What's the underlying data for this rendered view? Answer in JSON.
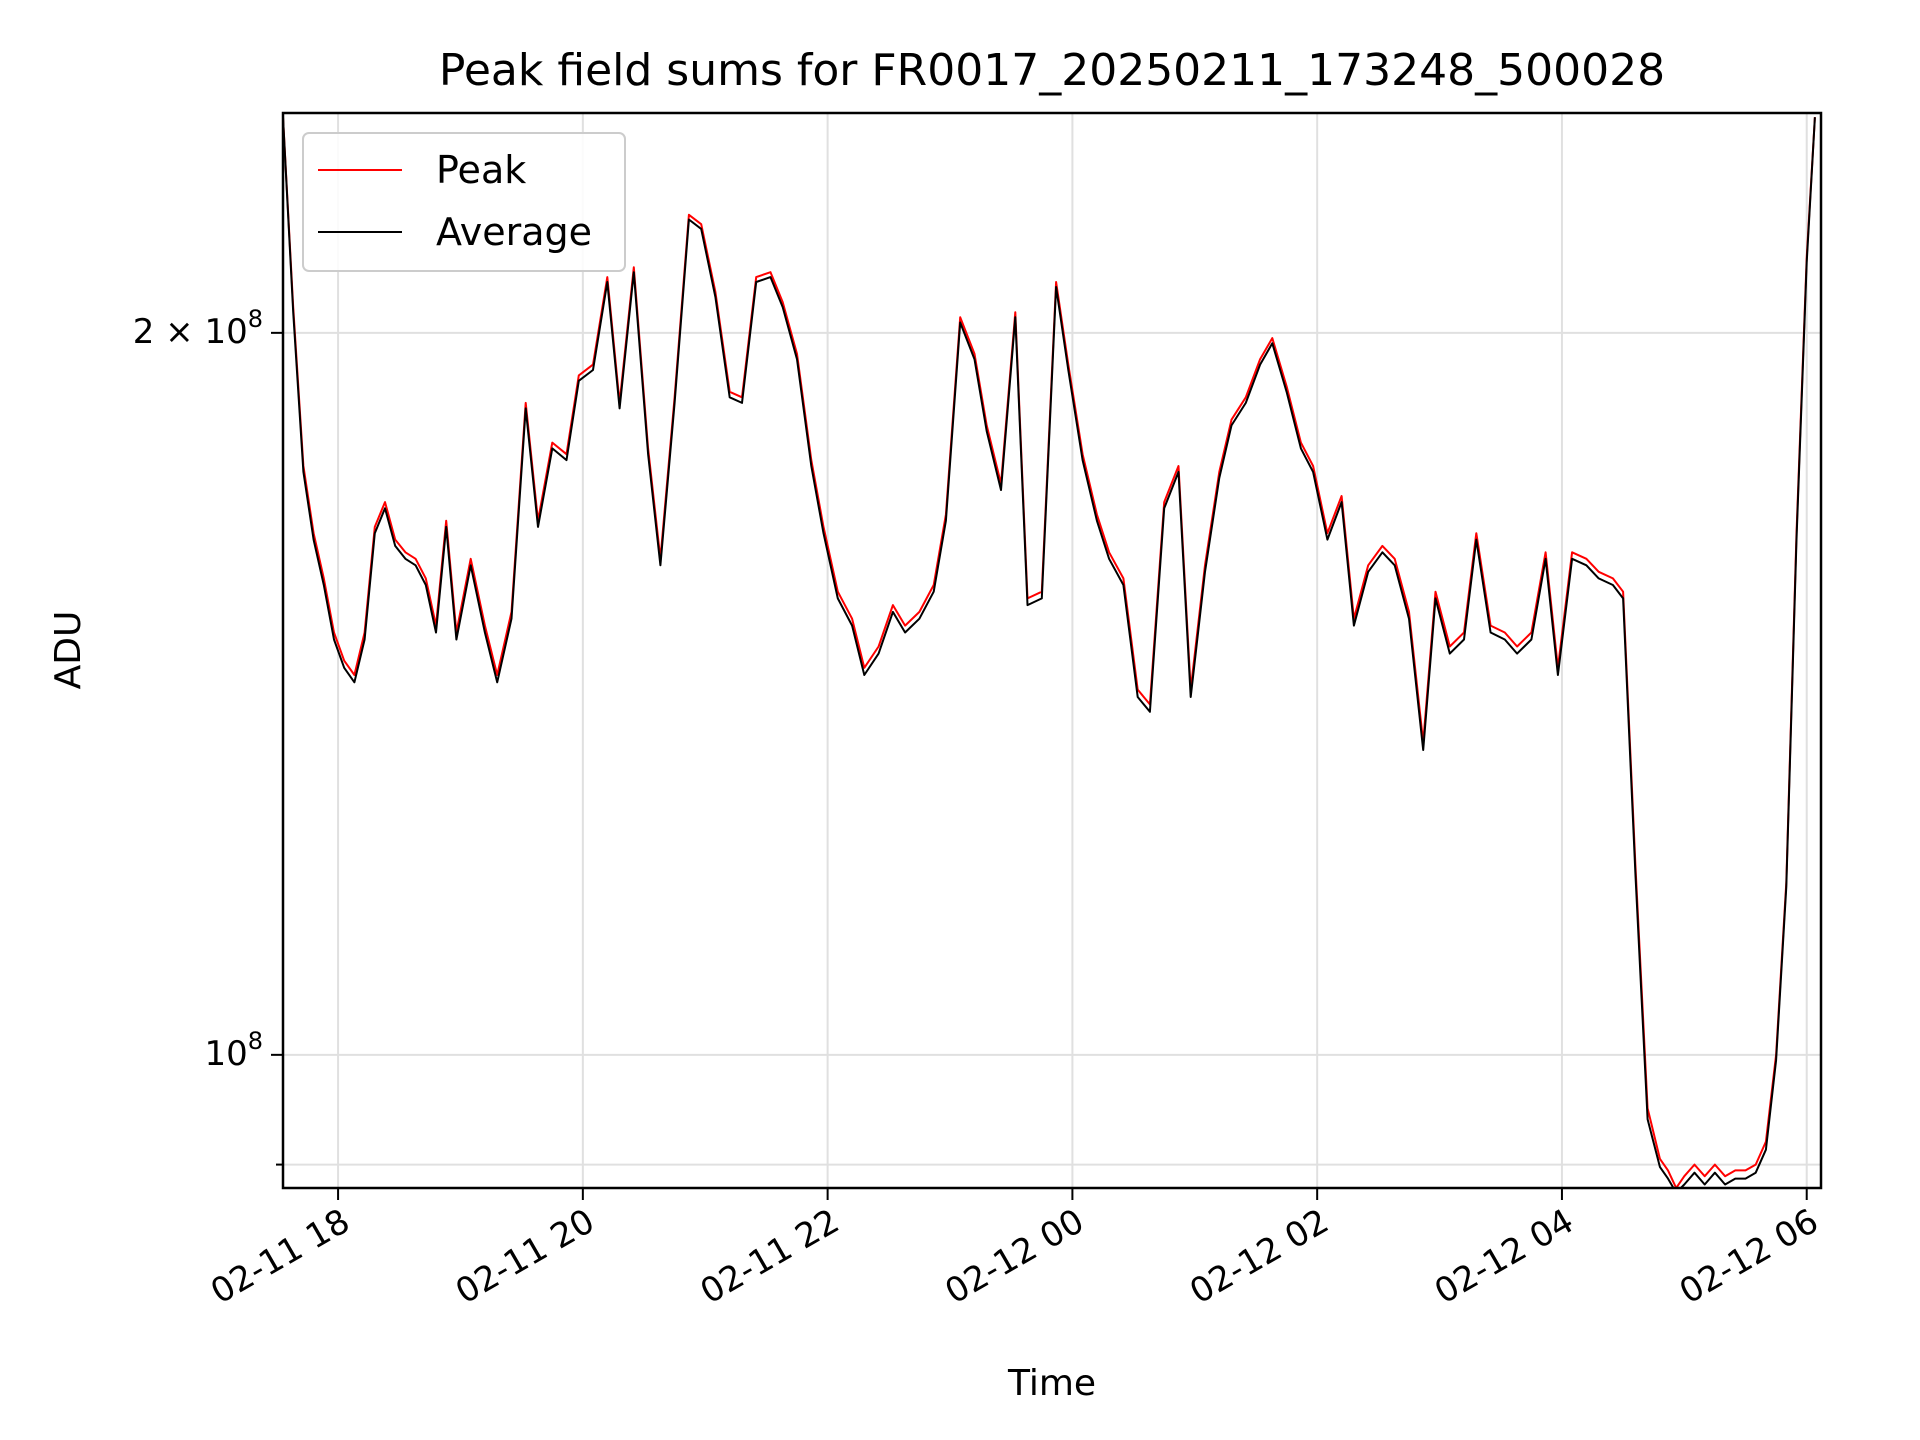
{
  "chart_data": {
    "type": "line",
    "title": "Peak field sums for FR0017_20250211_173248_500028",
    "xlabel": "Time",
    "ylabel": "ADU",
    "yscale": "log",
    "grid": true,
    "legend_position": "top-left",
    "xlim": [
      "2025-02-11 17:33",
      "2025-02-12 06:07"
    ],
    "ylim": [
      88000000,
      247000000
    ],
    "x_ticks": [
      "02-11 18",
      "02-11 20",
      "02-11 22",
      "02-12 00",
      "02-12 02",
      "02-12 04",
      "02-12 06"
    ],
    "x_tick_values": [
      "2025-02-11 18:00",
      "2025-02-11 20:00",
      "2025-02-11 22:00",
      "2025-02-12 00:00",
      "2025-02-12 02:00",
      "2025-02-12 04:00",
      "2025-02-12 06:00"
    ],
    "y_major_ticks": [
      {
        "value": 100000000,
        "base": "10",
        "exp": "8",
        "mult": ""
      },
      {
        "value": 200000000,
        "base": "10",
        "exp": "8",
        "mult": "2 × "
      }
    ],
    "y_minor_ticks": [
      90000000
    ],
    "series": [
      {
        "name": "Peak",
        "color": "#ff0000",
        "x": [
          "2025-02-11 17:33",
          "2025-02-11 17:38",
          "2025-02-11 17:43",
          "2025-02-11 17:48",
          "2025-02-11 17:53",
          "2025-02-11 17:58",
          "2025-02-11 18:03",
          "2025-02-11 18:08",
          "2025-02-11 18:13",
          "2025-02-11 18:18",
          "2025-02-11 18:23",
          "2025-02-11 18:28",
          "2025-02-11 18:33",
          "2025-02-11 18:38",
          "2025-02-11 18:43",
          "2025-02-11 18:48",
          "2025-02-11 18:53",
          "2025-02-11 18:58",
          "2025-02-11 19:05",
          "2025-02-11 19:12",
          "2025-02-11 19:18",
          "2025-02-11 19:25",
          "2025-02-11 19:32",
          "2025-02-11 19:38",
          "2025-02-11 19:45",
          "2025-02-11 19:52",
          "2025-02-11 19:58",
          "2025-02-11 20:05",
          "2025-02-11 20:12",
          "2025-02-11 20:18",
          "2025-02-11 20:25",
          "2025-02-11 20:32",
          "2025-02-11 20:38",
          "2025-02-11 20:45",
          "2025-02-11 20:52",
          "2025-02-11 20:58",
          "2025-02-11 21:05",
          "2025-02-11 21:12",
          "2025-02-11 21:18",
          "2025-02-11 21:25",
          "2025-02-11 21:32",
          "2025-02-11 21:38",
          "2025-02-11 21:45",
          "2025-02-11 21:52",
          "2025-02-11 21:58",
          "2025-02-11 22:05",
          "2025-02-11 22:12",
          "2025-02-11 22:18",
          "2025-02-11 22:25",
          "2025-02-11 22:32",
          "2025-02-11 22:38",
          "2025-02-11 22:45",
          "2025-02-11 22:52",
          "2025-02-11 22:58",
          "2025-02-11 23:05",
          "2025-02-11 23:12",
          "2025-02-11 23:18",
          "2025-02-11 23:25",
          "2025-02-11 23:32",
          "2025-02-11 23:38",
          "2025-02-11 23:45",
          "2025-02-11 23:52",
          "2025-02-11 23:58",
          "2025-02-12 00:05",
          "2025-02-12 00:12",
          "2025-02-12 00:18",
          "2025-02-12 00:25",
          "2025-02-12 00:32",
          "2025-02-12 00:38",
          "2025-02-12 00:45",
          "2025-02-12 00:52",
          "2025-02-12 00:58",
          "2025-02-12 01:05",
          "2025-02-12 01:12",
          "2025-02-12 01:18",
          "2025-02-12 01:25",
          "2025-02-12 01:32",
          "2025-02-12 01:38",
          "2025-02-12 01:45",
          "2025-02-12 01:52",
          "2025-02-12 01:58",
          "2025-02-12 02:05",
          "2025-02-12 02:12",
          "2025-02-12 02:18",
          "2025-02-12 02:25",
          "2025-02-12 02:32",
          "2025-02-12 02:38",
          "2025-02-12 02:45",
          "2025-02-12 02:52",
          "2025-02-12 02:58",
          "2025-02-12 03:05",
          "2025-02-12 03:12",
          "2025-02-12 03:18",
          "2025-02-12 03:25",
          "2025-02-12 03:32",
          "2025-02-12 03:38",
          "2025-02-12 03:45",
          "2025-02-12 03:52",
          "2025-02-12 03:58",
          "2025-02-12 04:05",
          "2025-02-12 04:12",
          "2025-02-12 04:18",
          "2025-02-12 04:25",
          "2025-02-12 04:30",
          "2025-02-12 04:36",
          "2025-02-12 04:42",
          "2025-02-12 04:48",
          "2025-02-12 04:52",
          "2025-02-12 04:56",
          "2025-02-12 05:00",
          "2025-02-12 05:05",
          "2025-02-12 05:10",
          "2025-02-12 05:15",
          "2025-02-12 05:20",
          "2025-02-12 05:25",
          "2025-02-12 05:30",
          "2025-02-12 05:35",
          "2025-02-12 05:40",
          "2025-02-12 05:45",
          "2025-02-12 05:50",
          "2025-02-12 05:55",
          "2025-02-12 06:00",
          "2025-02-12 06:04"
        ],
        "values": [
          246000000,
          205000000,
          176000000,
          165000000,
          158000000,
          150000000,
          146000000,
          144000000,
          150000000,
          166000000,
          170000000,
          164000000,
          162000000,
          161000000,
          158000000,
          151000000,
          167000000,
          150000000,
          161000000,
          151000000,
          144000000,
          153000000,
          187000000,
          167000000,
          180000000,
          178000000,
          192000000,
          194000000,
          211000000,
          187000000,
          213000000,
          179000000,
          161000000,
          188000000,
          224000000,
          222000000,
          208000000,
          189000000,
          188000000,
          211000000,
          212000000,
          206000000,
          196000000,
          177000000,
          166000000,
          156000000,
          152000000,
          145000000,
          148000000,
          154000000,
          151000000,
          153000000,
          157000000,
          168000000,
          203000000,
          196000000,
          183000000,
          173000000,
          204000000,
          155000000,
          156000000,
          210000000,
          194000000,
          178000000,
          168000000,
          162000000,
          158000000,
          142000000,
          140000000,
          170000000,
          176000000,
          142000000,
          160000000,
          175000000,
          184000000,
          188000000,
          195000000,
          199000000,
          190000000,
          180000000,
          176000000,
          165000000,
          171000000,
          152000000,
          160000000,
          163000000,
          161000000,
          153000000,
          135000000,
          156000000,
          148000000,
          150000000,
          165000000,
          151000000,
          150000000,
          148000000,
          150000000,
          162000000,
          145000000,
          162000000,
          161000000,
          159000000,
          158000000,
          156000000,
          120000000,
          95000000,
          90500000,
          89500000,
          88000000,
          89000000,
          90000000,
          89000000,
          90000000,
          89000000,
          89500000,
          89500000,
          90000000,
          92000000,
          100000000,
          118000000,
          165000000,
          215000000,
          246000000
        ]
      },
      {
        "name": "Average",
        "color": "#000000",
        "x": [
          "2025-02-11 17:33",
          "2025-02-11 17:38",
          "2025-02-11 17:43",
          "2025-02-11 17:48",
          "2025-02-11 17:53",
          "2025-02-11 17:58",
          "2025-02-11 18:03",
          "2025-02-11 18:08",
          "2025-02-11 18:13",
          "2025-02-11 18:18",
          "2025-02-11 18:23",
          "2025-02-11 18:28",
          "2025-02-11 18:33",
          "2025-02-11 18:38",
          "2025-02-11 18:43",
          "2025-02-11 18:48",
          "2025-02-11 18:53",
          "2025-02-11 18:58",
          "2025-02-11 19:05",
          "2025-02-11 19:12",
          "2025-02-11 19:18",
          "2025-02-11 19:25",
          "2025-02-11 19:32",
          "2025-02-11 19:38",
          "2025-02-11 19:45",
          "2025-02-11 19:52",
          "2025-02-11 19:58",
          "2025-02-11 20:05",
          "2025-02-11 20:12",
          "2025-02-11 20:18",
          "2025-02-11 20:25",
          "2025-02-11 20:32",
          "2025-02-11 20:38",
          "2025-02-11 20:45",
          "2025-02-11 20:52",
          "2025-02-11 20:58",
          "2025-02-11 21:05",
          "2025-02-11 21:12",
          "2025-02-11 21:18",
          "2025-02-11 21:25",
          "2025-02-11 21:32",
          "2025-02-11 21:38",
          "2025-02-11 21:45",
          "2025-02-11 21:52",
          "2025-02-11 21:58",
          "2025-02-11 22:05",
          "2025-02-11 22:12",
          "2025-02-11 22:18",
          "2025-02-11 22:25",
          "2025-02-11 22:32",
          "2025-02-11 22:38",
          "2025-02-11 22:45",
          "2025-02-11 22:52",
          "2025-02-11 22:58",
          "2025-02-11 23:05",
          "2025-02-11 23:12",
          "2025-02-11 23:18",
          "2025-02-11 23:25",
          "2025-02-11 23:32",
          "2025-02-11 23:38",
          "2025-02-11 23:45",
          "2025-02-11 23:52",
          "2025-02-11 23:58",
          "2025-02-12 00:05",
          "2025-02-12 00:12",
          "2025-02-12 00:18",
          "2025-02-12 00:25",
          "2025-02-12 00:32",
          "2025-02-12 00:38",
          "2025-02-12 00:45",
          "2025-02-12 00:52",
          "2025-02-12 00:58",
          "2025-02-12 01:05",
          "2025-02-12 01:12",
          "2025-02-12 01:18",
          "2025-02-12 01:25",
          "2025-02-12 01:32",
          "2025-02-12 01:38",
          "2025-02-12 01:45",
          "2025-02-12 01:52",
          "2025-02-12 01:58",
          "2025-02-12 02:05",
          "2025-02-12 02:12",
          "2025-02-12 02:18",
          "2025-02-12 02:25",
          "2025-02-12 02:32",
          "2025-02-12 02:38",
          "2025-02-12 02:45",
          "2025-02-12 02:52",
          "2025-02-12 02:58",
          "2025-02-12 03:05",
          "2025-02-12 03:12",
          "2025-02-12 03:18",
          "2025-02-12 03:25",
          "2025-02-12 03:32",
          "2025-02-12 03:38",
          "2025-02-12 03:45",
          "2025-02-12 03:52",
          "2025-02-12 03:58",
          "2025-02-12 04:05",
          "2025-02-12 04:12",
          "2025-02-12 04:18",
          "2025-02-12 04:25",
          "2025-02-12 04:30",
          "2025-02-12 04:36",
          "2025-02-12 04:42",
          "2025-02-12 04:48",
          "2025-02-12 04:52",
          "2025-02-12 04:56",
          "2025-02-12 05:00",
          "2025-02-12 05:05",
          "2025-02-12 05:10",
          "2025-02-12 05:15",
          "2025-02-12 05:20",
          "2025-02-12 05:25",
          "2025-02-12 05:30",
          "2025-02-12 05:35",
          "2025-02-12 05:40",
          "2025-02-12 05:45",
          "2025-02-12 05:50",
          "2025-02-12 05:55",
          "2025-02-12 06:00",
          "2025-02-12 06:04"
        ],
        "values": [
          246000000,
          204000000,
          175000000,
          164000000,
          157000000,
          149000000,
          145000000,
          143000000,
          149000000,
          165000000,
          169000000,
          163000000,
          161000000,
          160000000,
          157000000,
          150000000,
          166000000,
          149000000,
          160000000,
          150000000,
          143000000,
          152000000,
          186000000,
          166000000,
          179000000,
          177000000,
          191000000,
          193000000,
          210000000,
          186000000,
          212000000,
          178000000,
          160000000,
          187000000,
          223000000,
          221000000,
          207000000,
          188000000,
          187000000,
          210000000,
          211000000,
          205000000,
          195000000,
          176000000,
          165000000,
          155000000,
          151000000,
          144000000,
          147000000,
          153000000,
          150000000,
          152000000,
          156000000,
          167000000,
          202000000,
          195000000,
          182000000,
          172000000,
          203000000,
          154000000,
          155000000,
          209000000,
          193000000,
          177000000,
          167000000,
          161000000,
          157000000,
          141000000,
          139000000,
          169000000,
          175000000,
          141000000,
          159000000,
          174000000,
          183000000,
          187000000,
          194000000,
          198000000,
          189000000,
          179000000,
          175000000,
          164000000,
          170000000,
          151000000,
          159000000,
          162000000,
          160000000,
          152000000,
          134000000,
          155000000,
          147000000,
          149000000,
          164000000,
          150000000,
          149000000,
          147000000,
          149000000,
          161000000,
          144000000,
          161000000,
          160000000,
          158000000,
          157000000,
          155000000,
          119000000,
          94000000,
          89800000,
          88800000,
          87600000,
          88300000,
          89300000,
          88300000,
          89300000,
          88300000,
          88800000,
          88800000,
          89300000,
          91300000,
          99500000,
          117500000,
          164000000,
          214000000,
          246000000
        ]
      }
    ]
  }
}
